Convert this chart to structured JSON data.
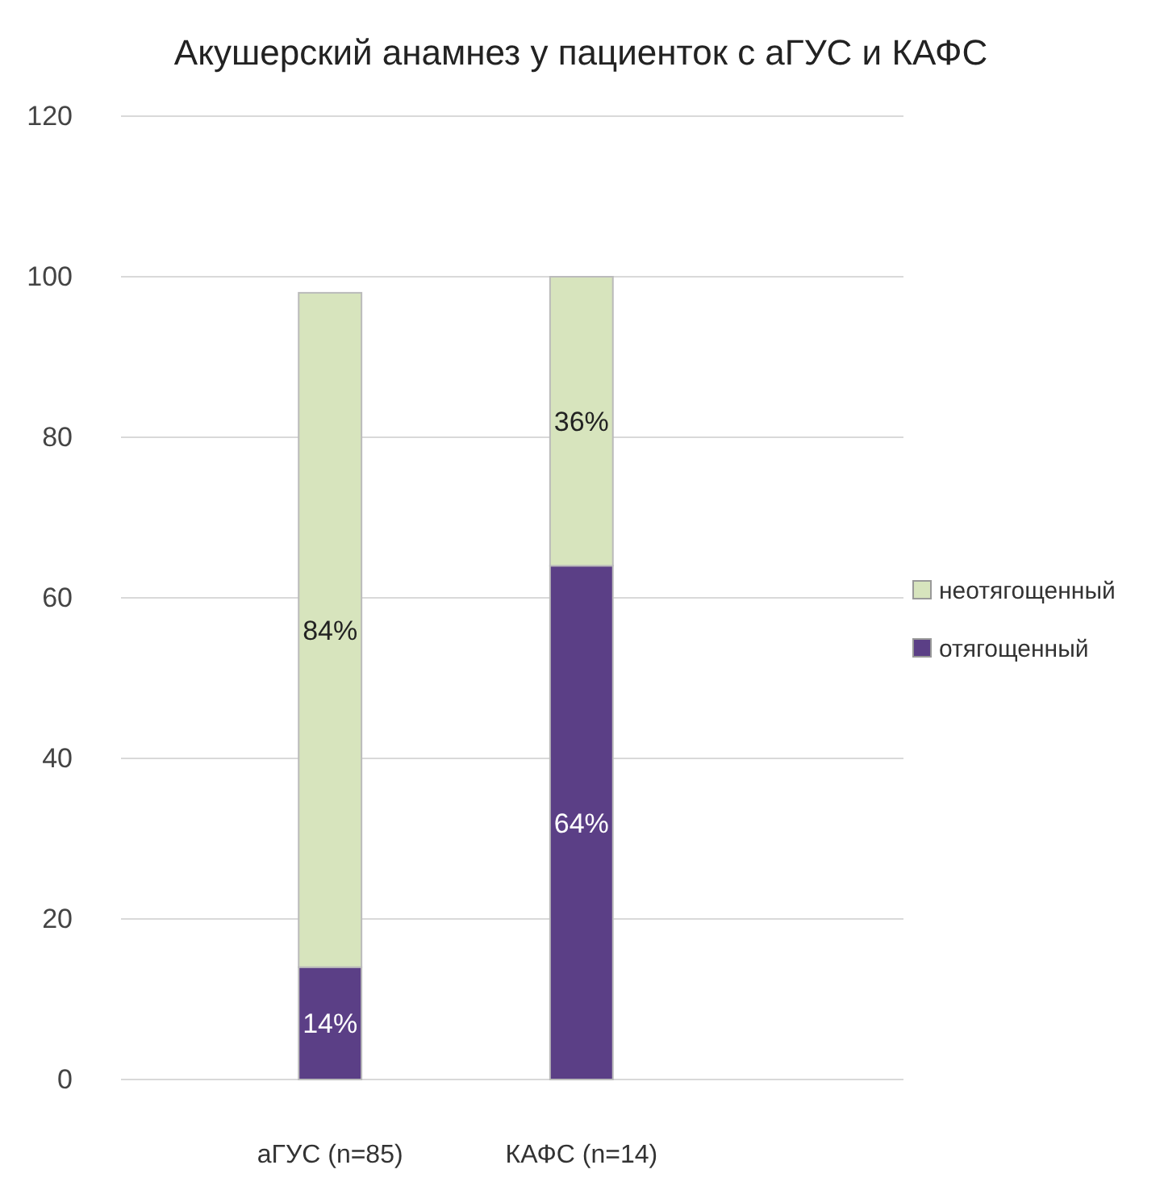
{
  "chart_data": {
    "type": "bar",
    "title": "Акушерский анамнез у пациенток с аГУС и КАФС",
    "categories": [
      "аГУС (n=85)",
      "КАФС (n=14)"
    ],
    "stacked": true,
    "series": [
      {
        "name": "отягощенный",
        "color": "#5b3f86",
        "values": [
          14,
          64
        ],
        "value_labels": [
          "14%",
          "64%"
        ]
      },
      {
        "name": "неотягощенный",
        "color": "#d7e4bd",
        "values": [
          84,
          36
        ],
        "value_labels": [
          "84%",
          "36%"
        ]
      }
    ],
    "ylim": [
      0,
      120
    ],
    "yticks": [
      0,
      20,
      40,
      60,
      80,
      100,
      120
    ],
    "grid": "y",
    "legend": "right"
  }
}
